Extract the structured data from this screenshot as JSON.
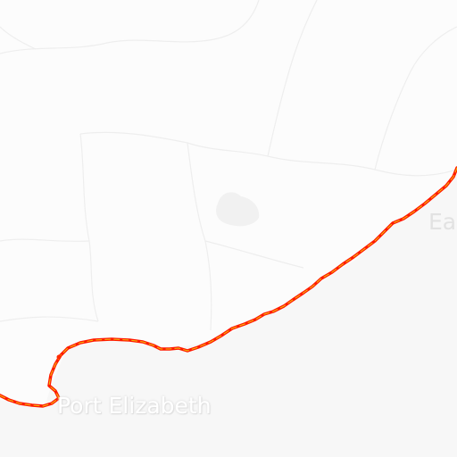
{
  "map": {
    "labels": {
      "port_elizabeth": "Port Elizabeth",
      "east_partial": "Ea"
    },
    "colors": {
      "land": "#fcfcfc",
      "sea": "#f7f7f7",
      "borders": "#ececec",
      "coast_heat_outer": "#ff1a00",
      "coast_heat_inner": "#f0e000"
    }
  }
}
